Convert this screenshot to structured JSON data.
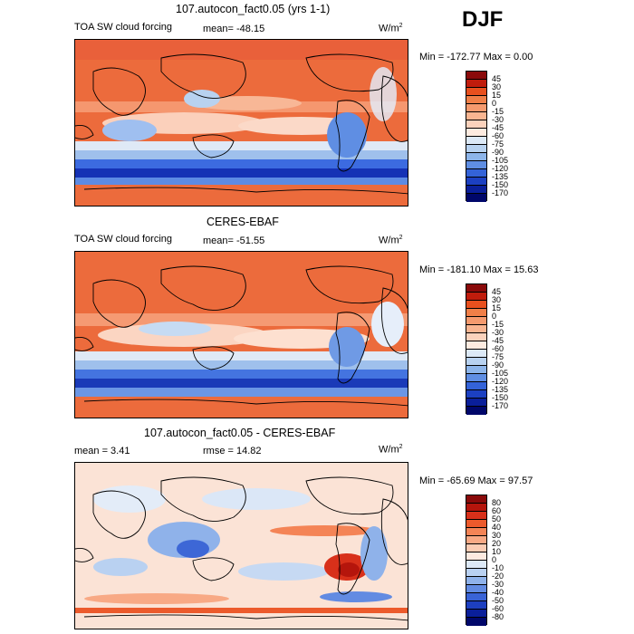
{
  "season": "DJF",
  "panels": [
    {
      "title": "107.autocon_fact0.05 (yrs 1-1)",
      "left_label": "TOA SW cloud forcing",
      "mean_label": "mean= -48.15",
      "units": "W/m",
      "units_sup": "2",
      "minmax": "Min = -172.77  Max =    0.00",
      "levels": [
        "45",
        "30",
        "15",
        "0",
        "-15",
        "-30",
        "-45",
        "-60",
        "-75",
        "-90",
        "-105",
        "-120",
        "-135",
        "-150",
        "-170"
      ],
      "colors": [
        "#8a0a0a",
        "#c01c0c",
        "#e8501e",
        "#f07f48",
        "#f59a6e",
        "#f9b591",
        "#fbd2bc",
        "#fdebe0",
        "#dce9f7",
        "#b8d2f0",
        "#8db5ea",
        "#5f8ee3",
        "#3463d8",
        "#1c40c2",
        "#0a1f9a",
        "#00076a"
      ]
    },
    {
      "title": "CERES-EBAF",
      "left_label": "TOA SW cloud forcing",
      "mean_label": "mean= -51.55",
      "units": "W/m",
      "units_sup": "2",
      "minmax": "Min = -181.10  Max =   15.63",
      "levels": [
        "45",
        "30",
        "15",
        "0",
        "-15",
        "-30",
        "-45",
        "-60",
        "-75",
        "-90",
        "-105",
        "-120",
        "-135",
        "-150",
        "-170"
      ],
      "colors": [
        "#8a0a0a",
        "#c01c0c",
        "#e8501e",
        "#f07f48",
        "#f59a6e",
        "#f9b591",
        "#fbd2bc",
        "#fdebe0",
        "#dce9f7",
        "#b8d2f0",
        "#8db5ea",
        "#5f8ee3",
        "#3463d8",
        "#1c40c2",
        "#0a1f9a",
        "#00076a"
      ]
    },
    {
      "title": "107.autocon_fact0.05 - CERES-EBAF",
      "left_label": "mean =    3.41",
      "mean_label": "rmse =   14.82",
      "units": "W/m",
      "units_sup": "2",
      "minmax": "Min = -65.69  Max =   97.57",
      "levels": [
        "80",
        "60",
        "50",
        "40",
        "30",
        "20",
        "10",
        "0",
        "-10",
        "-20",
        "-30",
        "-40",
        "-50",
        "-60",
        "-80"
      ],
      "colors": [
        "#8a0a0a",
        "#b5150c",
        "#d8301a",
        "#ec5a2c",
        "#f48456",
        "#f8a985",
        "#fbccb4",
        "#fdeae0",
        "#dde9f7",
        "#b9d1f1",
        "#8fb2ea",
        "#628be2",
        "#3963d6",
        "#1d3fc0",
        "#0a1f9a",
        "#00076a"
      ]
    }
  ]
}
